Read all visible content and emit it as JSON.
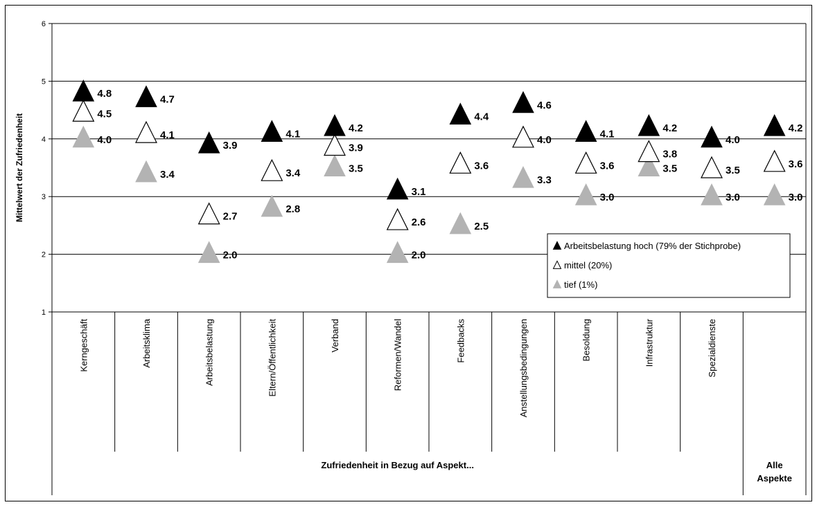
{
  "chart_data": {
    "type": "scatter",
    "ylabel": "Mittelwert der Zufriedenheit",
    "xlabel_group": "Zufriedenheit in Bezug auf Aspekt...",
    "xlabel_all_line1": "Alle",
    "xlabel_all_line2": "Aspekte",
    "ylim": [
      1,
      6
    ],
    "yticks": [
      "1",
      "2",
      "3",
      "4",
      "5",
      "6"
    ],
    "grid": true,
    "legend_position": "bottom-right",
    "categories": [
      "Kerngeschäft",
      "Arbeitsklima",
      "Arbeitsbelastung",
      "Eltern/Öffentlichkeit",
      "Verband",
      "Reformen/Wandel",
      "Feedbacks",
      "Anstellungsbedingungen",
      "Besoldung",
      "Infrastruktur",
      "Spezialdienste",
      ""
    ],
    "series": [
      {
        "name": "Arbeitsbelastung hoch (79% der Stichprobe)",
        "marker": "filled-triangle",
        "color": "#000000",
        "values": [
          4.8,
          4.7,
          3.9,
          4.1,
          4.2,
          3.1,
          4.4,
          4.6,
          4.1,
          4.2,
          4.0,
          4.2
        ],
        "labels": [
          "4.8",
          "4.7",
          "3.9",
          "4.1",
          "4.2",
          "3.1",
          "4.4",
          "4.6",
          "4.1",
          "4.2",
          "4.0",
          "4.2"
        ]
      },
      {
        "name": "mittel (20%)",
        "marker": "open-triangle",
        "color": "#000000",
        "values": [
          4.45,
          4.08,
          2.67,
          3.42,
          3.86,
          2.57,
          3.55,
          4.0,
          3.55,
          3.75,
          3.47,
          3.58
        ],
        "labels": [
          "4.5",
          "4.1",
          "2.7",
          "3.4",
          "3.9",
          "2.6",
          "3.6",
          "4.0",
          "3.6",
          "3.8",
          "3.5",
          "3.6"
        ]
      },
      {
        "name": "tief (1%)",
        "marker": "filled-triangle",
        "color": "#b3b3b3",
        "values": [
          4.0,
          3.4,
          2.0,
          2.8,
          3.5,
          2.0,
          2.5,
          3.3,
          3.0,
          3.5,
          3.0,
          3.0
        ],
        "labels": [
          "4.0",
          "3.4",
          "2.0",
          "2.8",
          "3.5",
          "2.0",
          "2.5",
          "3.3",
          "3.0",
          "3.5",
          "3.0",
          "3.0"
        ]
      }
    ]
  }
}
